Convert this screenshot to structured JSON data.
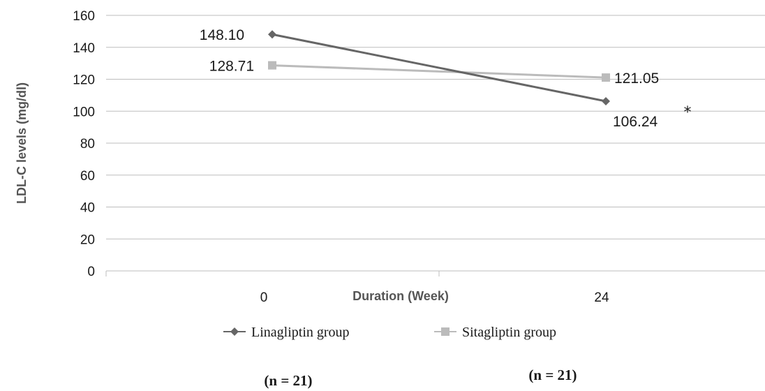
{
  "chart_data": {
    "type": "line",
    "categories": [
      "0",
      "24"
    ],
    "series": [
      {
        "name": "Linagliptin group",
        "values": [
          148.1,
          106.24
        ],
        "labels": [
          "148.10",
          "106.24"
        ],
        "color": "#666666",
        "marker": "diamond"
      },
      {
        "name": "Sitagliptin group",
        "values": [
          128.71,
          121.05
        ],
        "labels": [
          "128.71",
          "121.05"
        ],
        "color": "#bbbbbb",
        "marker": "square"
      }
    ],
    "title": "",
    "xlabel": "Duration (Week)",
    "ylabel": "LDL-C levels (mg/dl)",
    "ylim": [
      0,
      160
    ],
    "yticks": [
      "0",
      "20",
      "40",
      "60",
      "80",
      "100",
      "120",
      "140",
      "160"
    ],
    "grid": true,
    "legend": "bottom",
    "annotation": "*",
    "sample_sizes": [
      "(n = 21)",
      "(n = 21)"
    ]
  }
}
